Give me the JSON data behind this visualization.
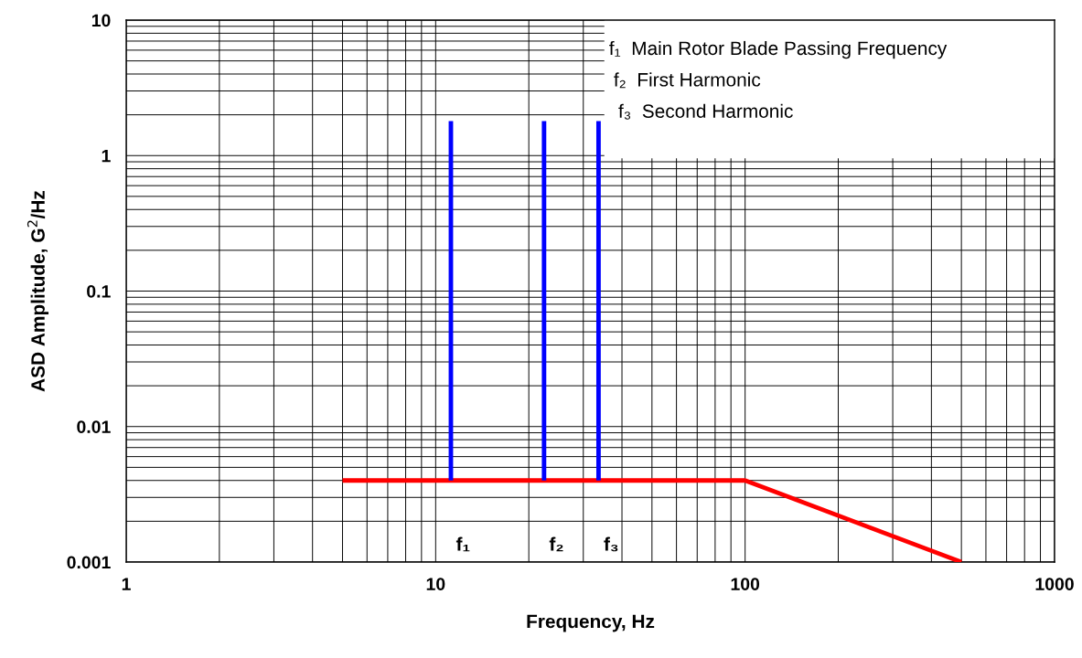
{
  "chart_data": {
    "type": "line",
    "xlabel": "Frequency, Hz",
    "ylabel": "ASD Amplitude, G$^{2}$/Hz",
    "log": "xy",
    "grid": true,
    "xlim": [
      1,
      1000
    ],
    "ylim": [
      0.001,
      10
    ],
    "xticks": [
      1,
      10,
      100,
      1000
    ],
    "yticks": [
      0.001,
      0.01,
      0.1,
      1,
      10
    ],
    "line_style": "solid",
    "marker": "none",
    "series": [
      {
        "color": "#ff0000",
        "x": [
          5,
          100,
          500
        ],
        "values": [
          0.004,
          0.004,
          0.001
        ]
      },
      {
        "color": "#0000ff",
        "x": [
          11.2,
          11.2
        ],
        "values": [
          0.004,
          1.8
        ]
      },
      {
        "color": "#0000ff",
        "x": [
          22.4,
          22.4
        ],
        "values": [
          0.004,
          1.8
        ]
      },
      {
        "color": "#0000ff",
        "x": [
          33.6,
          33.6
        ],
        "values": [
          0.004,
          1.8
        ]
      }
    ],
    "annotations": [
      "f₁  Main Rotor Blade Passing Frequency",
      "f₂  First Harmonic",
      "f₃  Second Harmonic",
      "f₁",
      "f₂",
      "f₃"
    ]
  }
}
